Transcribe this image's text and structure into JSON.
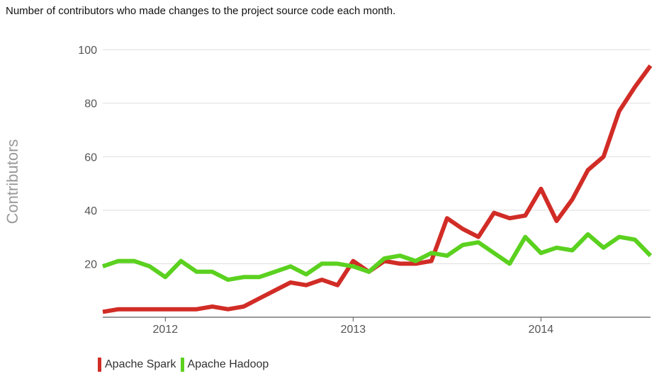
{
  "caption": "Number of contributors who made changes to the project source code each month.",
  "chart_data": {
    "type": "line",
    "title": "Number of contributors who made changes to the project source code each month.",
    "xlabel": "",
    "ylabel": "Contributors",
    "x_tick_labels": [
      "2012",
      "2013",
      "2014"
    ],
    "x_tick_values": [
      "2012-01",
      "2013-01",
      "2014-01"
    ],
    "xlim": [
      "2011-09",
      "2014-08"
    ],
    "y_tick_labels": [
      "100",
      "80",
      "60",
      "40",
      "20"
    ],
    "y_tick_values": [
      100,
      80,
      60,
      40,
      20
    ],
    "ylim": [
      0,
      104
    ],
    "grid": true,
    "legend_position": "bottom-left",
    "x": [
      "2011-09",
      "2011-10",
      "2011-11",
      "2011-12",
      "2012-01",
      "2012-02",
      "2012-03",
      "2012-04",
      "2012-05",
      "2012-06",
      "2012-07",
      "2012-08",
      "2012-09",
      "2012-10",
      "2012-11",
      "2012-12",
      "2013-01",
      "2013-02",
      "2013-03",
      "2013-04",
      "2013-05",
      "2013-06",
      "2013-07",
      "2013-08",
      "2013-09",
      "2013-10",
      "2013-11",
      "2013-12",
      "2014-01",
      "2014-02",
      "2014-03",
      "2014-04",
      "2014-05",
      "2014-06",
      "2014-07",
      "2014-08"
    ],
    "series": [
      {
        "name": "Apache Spark",
        "color": "#d12c26",
        "values": [
          2,
          3,
          3,
          3,
          3,
          3,
          3,
          4,
          3,
          4,
          7,
          10,
          13,
          12,
          14,
          12,
          21,
          17,
          21,
          20,
          20,
          21,
          37,
          33,
          30,
          39,
          37,
          38,
          48,
          36,
          44,
          55,
          60,
          77,
          86,
          94
        ]
      },
      {
        "name": "Apache Hadoop",
        "color": "#5bd11f",
        "values": [
          19,
          21,
          21,
          19,
          15,
          21,
          17,
          17,
          14,
          15,
          15,
          17,
          19,
          16,
          20,
          20,
          19,
          17,
          22,
          23,
          21,
          24,
          23,
          27,
          28,
          24,
          20,
          30,
          24,
          26,
          25,
          31,
          26,
          30,
          29,
          23
        ]
      }
    ]
  }
}
